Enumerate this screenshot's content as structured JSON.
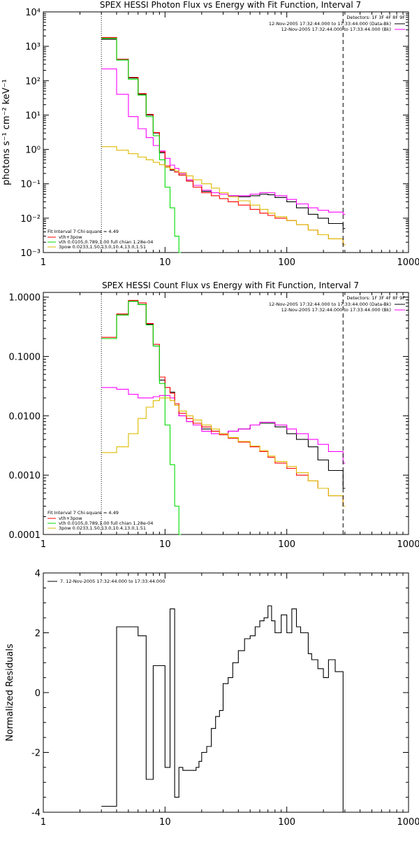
{
  "chart_data": [
    {
      "type": "line",
      "title": "SPEX HESSI Photon Flux vs Energy with Fit Function, Interval 7",
      "ylabel": "photons s⁻¹ cm⁻² keV⁻¹",
      "xscale": "log",
      "yscale": "log",
      "xlim": [
        1,
        1000
      ],
      "ylim": [
        0.001,
        10000
      ],
      "xticks": [
        1,
        10,
        100,
        1000
      ],
      "xtick_labels": [
        "1",
        "10",
        "100",
        "1000"
      ],
      "yticks": [
        0.001,
        0.01,
        0.1,
        1,
        10,
        100,
        1000,
        10000
      ],
      "ytick_labels": [
        "10⁻³",
        "10⁻²",
        "10⁻¹",
        "10⁰",
        "10¹",
        "10²",
        "10³",
        "10⁴"
      ],
      "vlines": [
        {
          "x": 3,
          "style": "dotted"
        },
        {
          "x": 290,
          "style": "dashed"
        }
      ],
      "detector_label": "Detectors: 1F 3F 4F 8F 9F",
      "legend_right": [
        "12-Nov-2005 17:32:44.000 to 17:33:44.000 (Data-Bk)",
        "12-Nov-2005 17:32:44.000 to 17:33:44.000 (Bk)"
      ],
      "legend_left": [
        "Fit Interval 7   Chi-square = 4.49",
        "vth+3pow",
        "vth 0.0105,0.789,1.00  full chian 1.28e-04",
        "3pow 0.0233,1.50,13.0,10.4,13.0,1.51"
      ],
      "series": [
        {
          "name": "12-Nov-2005 17:32:44.000 to 17:33:44.000 (Data-Bk)",
          "color": "#000000",
          "x": [
            3,
            4,
            5,
            6,
            7,
            8,
            9,
            10,
            11,
            12,
            13,
            15,
            17,
            20,
            24,
            28,
            33,
            40,
            50,
            60,
            70,
            80,
            100,
            120,
            150,
            180,
            220,
            290
          ],
          "y": [
            1600,
            400,
            120,
            40,
            10,
            3,
            0.8,
            0.3,
            0.25,
            0.22,
            0.18,
            0.12,
            0.08,
            0.06,
            0.055,
            0.05,
            0.045,
            0.042,
            0.045,
            0.05,
            0.048,
            0.04,
            0.03,
            0.02,
            0.013,
            0.01,
            0.007,
            0.005
          ]
        },
        {
          "name": "12-Nov-2005 17:32:44.000 to 17:33:44.000 (Bk)",
          "color": "#ff00ff",
          "x": [
            3,
            4,
            5,
            6,
            7,
            8,
            9,
            10,
            11,
            12,
            13,
            15,
            17,
            20,
            24,
            28,
            33,
            40,
            50,
            60,
            70,
            80,
            100,
            120,
            150,
            180,
            220,
            290
          ],
          "y": [
            220,
            40,
            9,
            4,
            2.2,
            1.3,
            0.9,
            0.55,
            0.35,
            0.28,
            0.2,
            0.13,
            0.09,
            0.065,
            0.055,
            0.05,
            0.045,
            0.045,
            0.05,
            0.055,
            0.055,
            0.045,
            0.035,
            0.026,
            0.02,
            0.017,
            0.015,
            0.013
          ]
        },
        {
          "name": "vth+3pow",
          "color": "#ff0000",
          "x": [
            3,
            4,
            5,
            6,
            7,
            8,
            9,
            10,
            11,
            12,
            13,
            15,
            17,
            20,
            24,
            28,
            33,
            40,
            50,
            60,
            70,
            80,
            100,
            120,
            150,
            180,
            220,
            290
          ],
          "y": [
            1800,
            420,
            125,
            42,
            10.5,
            3.1,
            0.85,
            0.33,
            0.26,
            0.22,
            0.18,
            0.12,
            0.08,
            0.055,
            0.045,
            0.037,
            0.03,
            0.024,
            0.018,
            0.014,
            0.012,
            0.01,
            0.0085,
            0.0065,
            0.0045,
            0.0033,
            0.0025,
            0.0017
          ]
        },
        {
          "name": "vth",
          "color": "#00dd00",
          "x": [
            3,
            4,
            5,
            6,
            7,
            8,
            9,
            10,
            11,
            12,
            13
          ],
          "y": [
            1700,
            400,
            110,
            38,
            9,
            2.5,
            0.5,
            0.08,
            0.02,
            0.003,
            0.001
          ]
        },
        {
          "name": "3pow",
          "color": "#ddbb00",
          "x": [
            3,
            4,
            5,
            6,
            7,
            8,
            9,
            10,
            11,
            12,
            13,
            15,
            17,
            20,
            24,
            28,
            33,
            40,
            50,
            60,
            70,
            80,
            100,
            120,
            150,
            180,
            220,
            290
          ],
          "y": [
            1.2,
            0.95,
            0.75,
            0.6,
            0.5,
            0.42,
            0.36,
            0.3,
            0.27,
            0.24,
            0.21,
            0.17,
            0.13,
            0.1,
            0.075,
            0.055,
            0.042,
            0.032,
            0.024,
            0.018,
            0.014,
            0.011,
            0.0085,
            0.0065,
            0.0045,
            0.0033,
            0.0025,
            0.0017
          ]
        }
      ]
    },
    {
      "type": "line",
      "title": "SPEX HESSI Count Flux vs Energy with Fit Function, Interval 7",
      "xscale": "log",
      "yscale": "log",
      "xlim": [
        1,
        1000
      ],
      "ylim": [
        0.0001,
        1.2
      ],
      "xticks": [
        1,
        10,
        100,
        1000
      ],
      "xtick_labels": [
        "1",
        "10",
        "100",
        "1000"
      ],
      "yticks": [
        0.0001,
        0.001,
        0.01,
        0.1,
        1
      ],
      "ytick_labels": [
        "0.0001",
        "0.0010",
        "0.0100",
        "0.1000",
        "1.0000"
      ],
      "vlines": [
        {
          "x": 3,
          "style": "dotted"
        },
        {
          "x": 290,
          "style": "dashed"
        }
      ],
      "detector_label": "Detectors: 1F 3F 4F 8F 9F",
      "legend_right": [
        "12-Nov-2005 17:32:44.000 to 17:33:44.000 (Data-Bk)",
        "12-Nov-2005 17:32:44.000 to 17:33:44.000 (Bk)"
      ],
      "legend_left": [
        "Fit Interval 7   Chi-square = 4.49",
        "vth+3pow",
        "vth 0.0105,0.789,1.00  full chian 1.28e-04",
        "3pow 0.0233,1.50,13.0,10.4,13.0,1.51"
      ],
      "series": [
        {
          "name": "12-Nov-2005 17:32:44.000 to 17:33:44.000 (Data-Bk)",
          "color": "#000000",
          "x": [
            3,
            4,
            5,
            6,
            7,
            8,
            9,
            10,
            11,
            12,
            13,
            15,
            17,
            20,
            24,
            28,
            33,
            40,
            50,
            60,
            70,
            80,
            100,
            120,
            150,
            180,
            220,
            290
          ],
          "y": [
            0.2,
            0.5,
            0.85,
            0.75,
            0.35,
            0.15,
            0.04,
            0.03,
            0.025,
            0.015,
            0.01,
            0.008,
            0.0075,
            0.006,
            0.0055,
            0.005,
            0.0055,
            0.006,
            0.007,
            0.0075,
            0.0075,
            0.0065,
            0.005,
            0.004,
            0.003,
            0.0018,
            0.0012,
            0.0006
          ]
        },
        {
          "name": "12-Nov-2005 17:32:44.000 to 17:33:44.000 (Bk)",
          "color": "#ff00ff",
          "x": [
            3,
            4,
            5,
            6,
            7,
            8,
            9,
            10,
            11,
            12,
            13,
            15,
            17,
            20,
            24,
            28,
            33,
            40,
            50,
            60,
            70,
            80,
            100,
            120,
            150,
            180,
            220,
            290
          ],
          "y": [
            0.03,
            0.028,
            0.023,
            0.02,
            0.02,
            0.021,
            0.022,
            0.022,
            0.02,
            0.015,
            0.01,
            0.008,
            0.007,
            0.0055,
            0.005,
            0.005,
            0.0055,
            0.006,
            0.007,
            0.0078,
            0.0078,
            0.007,
            0.006,
            0.005,
            0.004,
            0.0033,
            0.0025,
            0.0016
          ]
        },
        {
          "name": "vth+3pow",
          "color": "#ff0000",
          "x": [
            3,
            4,
            5,
            6,
            7,
            8,
            9,
            10,
            11,
            12,
            13,
            15,
            17,
            20,
            24,
            28,
            33,
            40,
            50,
            60,
            70,
            80,
            100,
            120,
            150,
            180,
            220,
            290
          ],
          "y": [
            0.21,
            0.52,
            0.88,
            0.8,
            0.36,
            0.16,
            0.045,
            0.03,
            0.024,
            0.016,
            0.011,
            0.009,
            0.0075,
            0.0065,
            0.0055,
            0.0048,
            0.0042,
            0.0036,
            0.003,
            0.0025,
            0.002,
            0.0016,
            0.0013,
            0.001,
            0.0008,
            0.0006,
            0.00045,
            0.0003
          ]
        },
        {
          "name": "vth",
          "color": "#00dd00",
          "x": [
            3,
            4,
            5,
            6,
            7,
            8,
            9,
            10,
            11,
            12,
            13
          ],
          "y": [
            0.2,
            0.5,
            0.85,
            0.75,
            0.34,
            0.15,
            0.035,
            0.007,
            0.0015,
            0.0003,
            0.0001
          ]
        },
        {
          "name": "3pow",
          "color": "#ddbb00",
          "x": [
            3,
            4,
            5,
            6,
            7,
            8,
            9,
            10,
            11,
            12,
            13,
            15,
            17,
            20,
            24,
            28,
            33,
            40,
            50,
            60,
            70,
            80,
            100,
            120,
            150,
            180,
            220,
            290
          ],
          "y": [
            0.0024,
            0.003,
            0.005,
            0.009,
            0.014,
            0.018,
            0.02,
            0.02,
            0.018,
            0.015,
            0.012,
            0.01,
            0.0085,
            0.007,
            0.006,
            0.005,
            0.0043,
            0.0037,
            0.0031,
            0.0026,
            0.0021,
            0.0017,
            0.0014,
            0.0011,
            0.0008,
            0.0006,
            0.00045,
            0.0003
          ]
        }
      ]
    },
    {
      "type": "line",
      "title": "",
      "ylabel": "Normalized Residuals",
      "xscale": "log",
      "yscale": "linear",
      "xlim": [
        1,
        1000
      ],
      "ylim": [
        -4,
        4
      ],
      "xticks": [
        1,
        10,
        100,
        1000
      ],
      "xtick_labels": [
        "1",
        "10",
        "100",
        "1000"
      ],
      "yticks": [
        -4,
        -2,
        0,
        2,
        4
      ],
      "ytick_labels": [
        "-4",
        "-2",
        "0",
        "2",
        "4"
      ],
      "legend_left": [
        "7. 12-Nov-2005 17:32:44.000 to 17:33:44.000"
      ],
      "series": [
        {
          "name": "7. 12-Nov-2005 17:32:44.000 to 17:33:44.000",
          "color": "#000000",
          "x": [
            3,
            4,
            5,
            6,
            7,
            8,
            9,
            10,
            11,
            12,
            13,
            14,
            15,
            17,
            18,
            19,
            20,
            22,
            24,
            26,
            28,
            30,
            33,
            36,
            40,
            45,
            50,
            55,
            60,
            65,
            70,
            75,
            80,
            90,
            100,
            110,
            120,
            130,
            150,
            160,
            180,
            200,
            220,
            250,
            290
          ],
          "y": [
            -3.8,
            2.2,
            2.2,
            1.9,
            -2.9,
            0.9,
            0.9,
            -2.5,
            2.8,
            -3.5,
            -2.5,
            -2.6,
            -2.6,
            -2.6,
            -2.5,
            -2.3,
            -2.0,
            -1.8,
            -1.2,
            -0.8,
            -0.6,
            0.3,
            0.5,
            1.0,
            1.4,
            1.8,
            1.9,
            2.2,
            2.4,
            2.5,
            2.9,
            2.4,
            2.0,
            2.6,
            2.0,
            2.8,
            2.2,
            2.0,
            1.3,
            1.1,
            0.8,
            0.5,
            1.1,
            0.7,
            -4.0
          ]
        }
      ]
    }
  ]
}
